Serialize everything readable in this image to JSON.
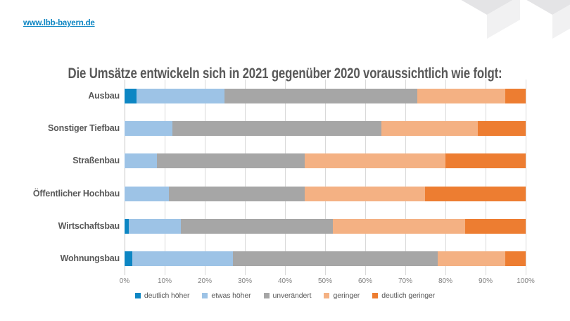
{
  "page": {
    "link_text": "www.lbb-bayern.de",
    "title": "Die Umsätze entwickeln sich in 2021 gegenüber 2020 voraussichtlich wie folgt:"
  },
  "colors": {
    "link": "#0d86c3",
    "title_text": "#595959",
    "category_text": "#595959",
    "tick_text": "#808080",
    "gridline": "#d9d9d9",
    "watermark_cube_top": "#e4e4e6",
    "watermark_cube_side": "#f1f1f2"
  },
  "chart_data": {
    "type": "bar",
    "orientation": "horizontal",
    "stacked": true,
    "title": "Die Umsätze entwickeln sich in 2021 gegenüber 2020 voraussichtlich wie folgt:",
    "categories": [
      "Ausbau",
      "Sonstiger Tiefbau",
      "Straßenbau",
      "Öffentlicher Hochbau",
      "Wirtschaftsbau",
      "Wohnungsbau"
    ],
    "series": [
      {
        "name": "deutlich höher",
        "color": "#0d86c3",
        "values": [
          3,
          0,
          0,
          0,
          1,
          2
        ]
      },
      {
        "name": "etwas höher",
        "color": "#9dc3e6",
        "values": [
          22,
          12,
          8,
          11,
          13,
          25
        ]
      },
      {
        "name": "unverändert",
        "color": "#a6a6a6",
        "values": [
          48,
          52,
          37,
          34,
          38,
          51
        ]
      },
      {
        "name": "geringer",
        "color": "#f4b183",
        "values": [
          22,
          24,
          35,
          30,
          33,
          17
        ]
      },
      {
        "name": "deutlich geringer",
        "color": "#ed7d31",
        "values": [
          5,
          12,
          20,
          25,
          15,
          5
        ]
      }
    ],
    "x_ticks": [
      "0%",
      "10%",
      "20%",
      "30%",
      "40%",
      "50%",
      "60%",
      "70%",
      "80%",
      "90%",
      "100%"
    ],
    "xlim": [
      0,
      100
    ],
    "unit": "%",
    "grid": true,
    "legend_position": "bottom"
  }
}
